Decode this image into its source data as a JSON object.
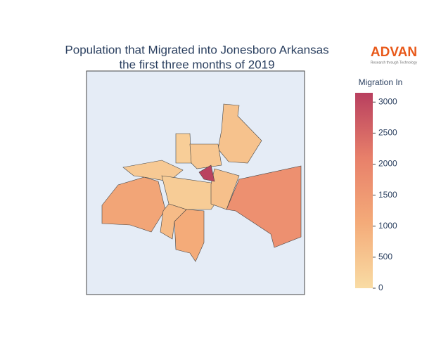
{
  "chart_data": {
    "type": "choropleth",
    "title": "Population that Migrated into Jonesboro Arkansas",
    "subtitle": "the first three months of 2019",
    "logo": "ADVAN",
    "logo_tagline": "Research through Technology",
    "colorbar_title": "Migration In",
    "colorscale": [
      "#f9dca4",
      "#f4ab79",
      "#e8806a",
      "#b83f5f"
    ],
    "clim": [
      0,
      3150
    ],
    "cticks": [
      0,
      500,
      1000,
      1500,
      2000,
      2500,
      3000
    ],
    "values": [
      1700,
      1200,
      550,
      1050,
      400,
      350,
      300,
      450,
      600,
      700,
      3100
    ]
  }
}
